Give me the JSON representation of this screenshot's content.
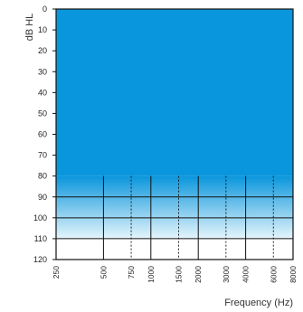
{
  "chart_data": {
    "type": "area",
    "title": "",
    "xlabel": "Frequency (Hz)",
    "ylabel": "dB HL",
    "x_scale": "log",
    "y_inverted": true,
    "ylim": [
      0,
      120
    ],
    "y_ticks": [
      0,
      10,
      20,
      30,
      40,
      50,
      60,
      70,
      80,
      90,
      100,
      110,
      120
    ],
    "x_ticks": [
      250,
      500,
      750,
      1000,
      1500,
      2000,
      3000,
      4000,
      6000,
      8000
    ],
    "x_ticks_dashed": [
      750,
      1500,
      3000,
      6000
    ],
    "grid": true,
    "series": [
      {
        "values": [
          {
            "from_db": 0,
            "to_db": 80,
            "shading": "solid"
          },
          {
            "from_db": 80,
            "to_db": 110,
            "shading": "gradient-fade"
          }
        ]
      }
    ],
    "colors": {
      "fill": "#0a96dc",
      "fade_end": "#e6f5fc",
      "grid": "#111111",
      "background": "#ffffff"
    }
  }
}
